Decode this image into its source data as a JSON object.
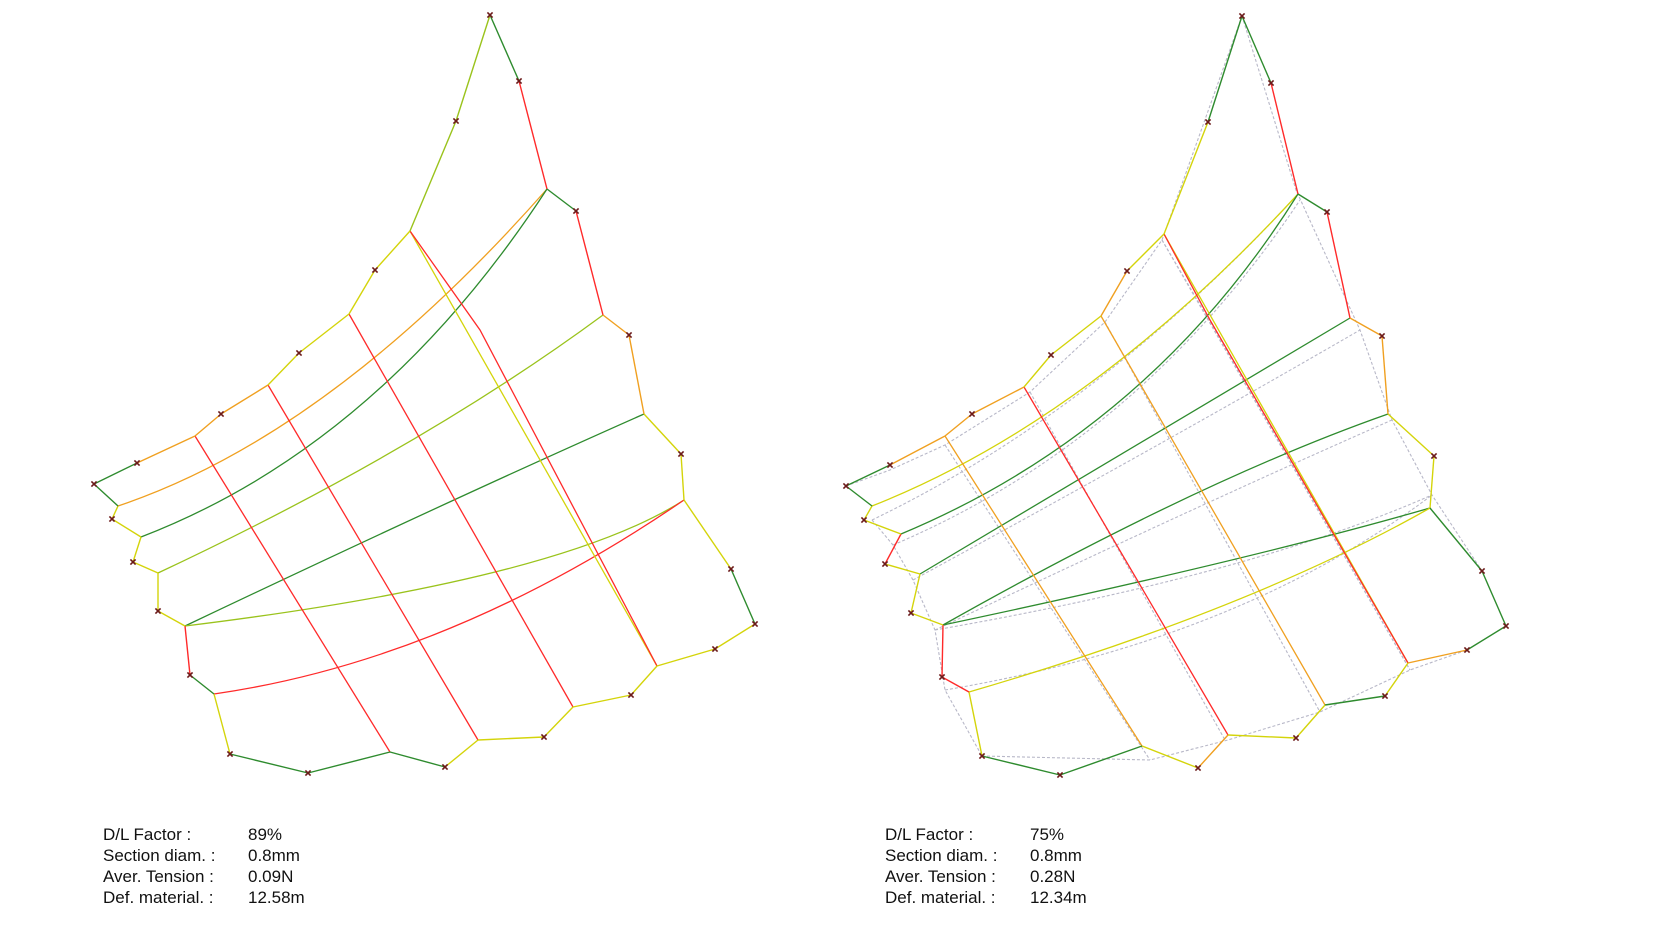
{
  "colors": {
    "background": "#ffffff",
    "anchor_marker": "#6b1a1a",
    "tension_low": "#2e8b2e",
    "tension_mid": "#d4d40a",
    "tension_high": "#ff2a2a",
    "reference_mesh": "#b8b8c8"
  },
  "panels": [
    {
      "id": "left",
      "stats": [
        {
          "label": "D/L Factor :",
          "value": "89%"
        },
        {
          "label": "Section diam. :",
          "value": "0.8mm"
        },
        {
          "label": "Aver. Tension :",
          "value": "0.09N"
        },
        {
          "label": "Def. material. :",
          "value": "12.58m"
        }
      ]
    },
    {
      "id": "right",
      "stats": [
        {
          "label": "D/L Factor :",
          "value": "75%"
        },
        {
          "label": "Section diam. :",
          "value": "0.8mm"
        },
        {
          "label": "Aver. Tension :",
          "value": "0.28N"
        },
        {
          "label": "Def. material. :",
          "value": "12.34m"
        }
      ]
    }
  ]
}
